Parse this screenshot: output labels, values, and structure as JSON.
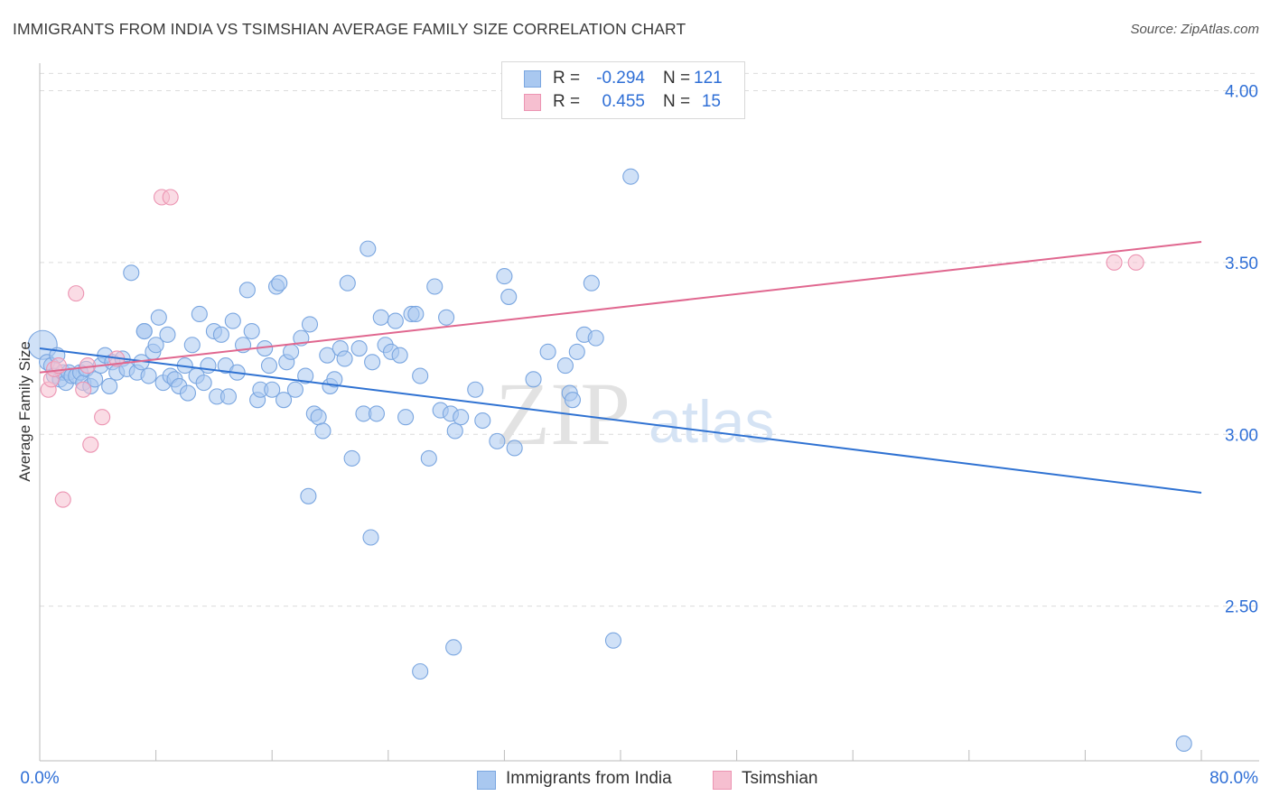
{
  "header": {
    "title": "IMMIGRANTS FROM INDIA VS TSIMSHIAN AVERAGE FAMILY SIZE CORRELATION CHART",
    "source": "Source: ZipAtlas.com"
  },
  "legend": {
    "rows": [
      {
        "r_label": "R =",
        "r_value": "-0.294",
        "n_label": "N =",
        "n_value": "121"
      },
      {
        "r_label": "R =",
        "r_value": "0.455",
        "n_label": "N =",
        "n_value": "15"
      }
    ]
  },
  "bottom_legend": {
    "items": [
      {
        "label": "Immigrants from India"
      },
      {
        "label": "Tsimshian"
      }
    ]
  },
  "watermark": {
    "part1": "ZIP",
    "part2": "atlas"
  },
  "colors": {
    "blue_fill": "#a9c8f0",
    "blue_stroke": "#7aa6e0",
    "blue_line": "#2f72d2",
    "pink_fill": "#f6bfd0",
    "pink_stroke": "#ec94b2",
    "pink_line": "#e0678f",
    "axis_label": "#2f6fd6",
    "grid": "#dcdcdc"
  },
  "chart_data": {
    "type": "scatter",
    "title": "IMMIGRANTS FROM INDIA VS TSIMSHIAN AVERAGE FAMILY SIZE CORRELATION CHART",
    "xlabel": "",
    "ylabel": "Average Family Size",
    "xlim": [
      0,
      80
    ],
    "ylim": [
      2.05,
      4.08
    ],
    "x_tick_labels": [
      "0.0%",
      "80.0%"
    ],
    "y_ticks": [
      2.5,
      3.0,
      3.5,
      4.0
    ],
    "y_tick_labels": [
      "2.50",
      "3.00",
      "3.50",
      "4.00"
    ],
    "grid": "horizontal dashed",
    "legend_position": "top-center",
    "series": [
      {
        "name": "Immigrants from India",
        "color": "#a9c8f0",
        "points": [
          [
            0.2,
            3.26
          ],
          [
            0.5,
            3.21
          ],
          [
            0.8,
            3.2
          ],
          [
            1.0,
            3.17
          ],
          [
            1.2,
            3.23
          ],
          [
            1.4,
            3.16
          ],
          [
            1.6,
            3.18
          ],
          [
            1.8,
            3.15
          ],
          [
            2.0,
            3.18
          ],
          [
            2.2,
            3.17
          ],
          [
            2.5,
            3.17
          ],
          [
            2.8,
            3.18
          ],
          [
            3.0,
            3.15
          ],
          [
            3.2,
            3.19
          ],
          [
            3.5,
            3.14
          ],
          [
            3.8,
            3.16
          ],
          [
            4.2,
            3.2
          ],
          [
            4.5,
            3.23
          ],
          [
            4.8,
            3.14
          ],
          [
            5.0,
            3.21
          ],
          [
            5.3,
            3.18
          ],
          [
            5.7,
            3.22
          ],
          [
            6.0,
            3.19
          ],
          [
            6.3,
            3.47
          ],
          [
            6.7,
            3.18
          ],
          [
            7.0,
            3.21
          ],
          [
            7.2,
            3.3
          ],
          [
            7.5,
            3.17
          ],
          [
            7.8,
            3.24
          ],
          [
            8.0,
            3.26
          ],
          [
            8.2,
            3.34
          ],
          [
            8.5,
            3.15
          ],
          [
            8.8,
            3.29
          ],
          [
            9.0,
            3.17
          ],
          [
            9.3,
            3.16
          ],
          [
            9.6,
            3.14
          ],
          [
            10.0,
            3.2
          ],
          [
            10.2,
            3.12
          ],
          [
            10.5,
            3.26
          ],
          [
            10.8,
            3.17
          ],
          [
            11.0,
            3.35
          ],
          [
            11.3,
            3.15
          ],
          [
            11.6,
            3.2
          ],
          [
            12.0,
            3.3
          ],
          [
            12.2,
            3.11
          ],
          [
            12.5,
            3.29
          ],
          [
            12.8,
            3.2
          ],
          [
            13.0,
            3.11
          ],
          [
            13.3,
            3.33
          ],
          [
            13.6,
            3.18
          ],
          [
            14.0,
            3.26
          ],
          [
            14.3,
            3.42
          ],
          [
            14.6,
            3.3
          ],
          [
            15.0,
            3.1
          ],
          [
            15.2,
            3.13
          ],
          [
            15.5,
            3.25
          ],
          [
            15.8,
            3.2
          ],
          [
            16.0,
            3.13
          ],
          [
            16.3,
            3.43
          ],
          [
            16.5,
            3.44
          ],
          [
            16.8,
            3.1
          ],
          [
            17.0,
            3.21
          ],
          [
            17.3,
            3.24
          ],
          [
            17.6,
            3.13
          ],
          [
            18.0,
            3.28
          ],
          [
            18.3,
            3.17
          ],
          [
            18.6,
            3.32
          ],
          [
            18.9,
            3.06
          ],
          [
            19.2,
            3.05
          ],
          [
            19.5,
            3.01
          ],
          [
            19.8,
            3.23
          ],
          [
            20.0,
            3.14
          ],
          [
            20.3,
            3.16
          ],
          [
            20.7,
            3.25
          ],
          [
            21.0,
            3.22
          ],
          [
            21.2,
            3.44
          ],
          [
            21.5,
            2.93
          ],
          [
            22.0,
            3.25
          ],
          [
            22.3,
            3.06
          ],
          [
            22.6,
            3.54
          ],
          [
            22.9,
            3.21
          ],
          [
            23.2,
            3.06
          ],
          [
            23.5,
            3.34
          ],
          [
            23.8,
            3.26
          ],
          [
            24.2,
            3.24
          ],
          [
            24.5,
            3.33
          ],
          [
            24.8,
            3.23
          ],
          [
            25.2,
            3.05
          ],
          [
            25.6,
            3.35
          ],
          [
            25.9,
            3.35
          ],
          [
            26.2,
            3.17
          ],
          [
            26.8,
            2.93
          ],
          [
            27.2,
            3.43
          ],
          [
            27.6,
            3.07
          ],
          [
            28.0,
            3.34
          ],
          [
            28.3,
            3.06
          ],
          [
            28.6,
            3.01
          ],
          [
            29.0,
            3.05
          ],
          [
            30.0,
            3.13
          ],
          [
            30.5,
            3.04
          ],
          [
            31.5,
            2.98
          ],
          [
            32.0,
            3.46
          ],
          [
            32.3,
            3.4
          ],
          [
            32.7,
            2.96
          ],
          [
            34.0,
            3.16
          ],
          [
            35.0,
            3.24
          ],
          [
            36.2,
            3.2
          ],
          [
            36.5,
            3.12
          ],
          [
            36.7,
            3.1
          ],
          [
            37.0,
            3.24
          ],
          [
            37.5,
            3.29
          ],
          [
            38.0,
            3.44
          ],
          [
            38.3,
            3.28
          ],
          [
            39.5,
            2.4
          ],
          [
            40.7,
            3.75
          ],
          [
            18.5,
            2.82
          ],
          [
            22.8,
            2.7
          ],
          [
            26.2,
            2.31
          ],
          [
            28.5,
            2.38
          ],
          [
            78.8,
            2.1
          ],
          [
            7.2,
            3.3
          ]
        ]
      },
      {
        "name": "Tsimshian",
        "color": "#f6bfd0",
        "points": [
          [
            0.6,
            3.13
          ],
          [
            0.8,
            3.16
          ],
          [
            1.0,
            3.19
          ],
          [
            1.3,
            3.2
          ],
          [
            2.5,
            3.41
          ],
          [
            3.0,
            3.13
          ],
          [
            3.3,
            3.2
          ],
          [
            4.3,
            3.05
          ],
          [
            3.5,
            2.97
          ],
          [
            1.6,
            2.81
          ],
          [
            8.4,
            3.69
          ],
          [
            9.0,
            3.69
          ],
          [
            74.0,
            3.5
          ],
          [
            75.5,
            3.5
          ],
          [
            5.3,
            3.22
          ]
        ]
      }
    ],
    "trendlines": [
      {
        "series": "Immigrants from India",
        "x": [
          0,
          80
        ],
        "y": [
          3.25,
          2.83
        ]
      },
      {
        "series": "Tsimshian",
        "x": [
          0,
          80
        ],
        "y": [
          3.18,
          3.56
        ]
      }
    ]
  }
}
